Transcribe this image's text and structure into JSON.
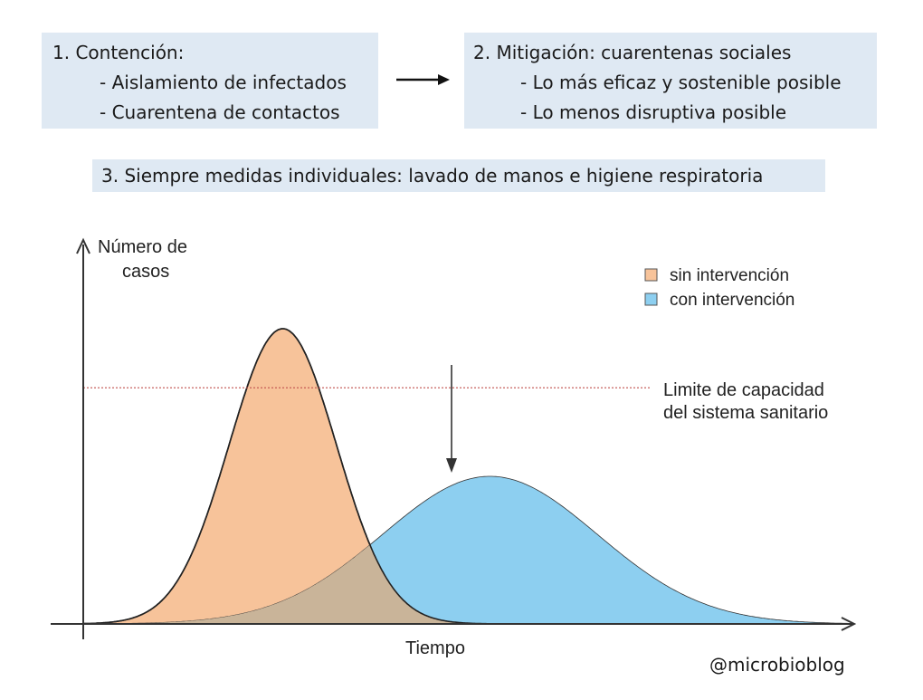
{
  "steps": {
    "containment": {
      "title": "1. Contención:",
      "items": [
        "- Aislamiento de infectados",
        "- Cuarentena de contactos"
      ]
    },
    "mitigation": {
      "title": "2. Mitigación: cuarentenas sociales",
      "items": [
        "- Lo más eficaz y sostenible posible",
        "- Lo menos disruptiva posible"
      ]
    },
    "individual": "3. Siempre medidas individuales: lavado de manos e higiene respiratoria"
  },
  "chart_data": {
    "type": "area",
    "ylabel_lines": [
      "Número de",
      "casos"
    ],
    "xlabel": "Tiempo",
    "capacity_label_lines": [
      "Limite de capacidad",
      "del sistema sanitario"
    ],
    "capacity_level": 0.8,
    "legend": {
      "placement": "top-right",
      "entries": [
        "sin intervención",
        "con intervención"
      ]
    },
    "series": [
      {
        "name": "sin intervención",
        "color": "#f7c39a",
        "peak_time": 0.26,
        "peak_height": 1.0,
        "width": 0.07,
        "end_time": 0.53
      },
      {
        "name": "con intervención",
        "color": "#8dcff0",
        "peak_time": 0.53,
        "peak_height": 0.5,
        "width": 0.14,
        "end_time": 1.0
      }
    ],
    "colors": {
      "overlap": "#c9b499",
      "axis": "#333333",
      "capacity_line": "#c0504d"
    }
  },
  "credit": "@microbioblog"
}
